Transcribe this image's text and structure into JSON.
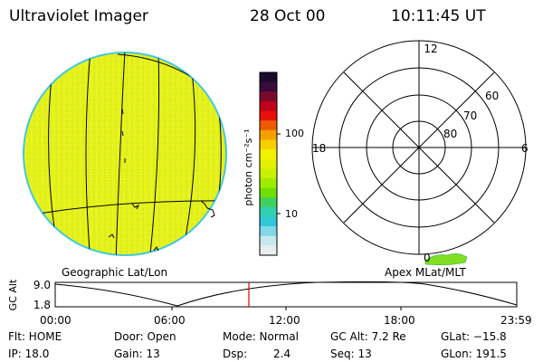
{
  "header": {
    "instrument": "Ultraviolet Imager",
    "date": "28 Oct 00",
    "time": "10:11:45 UT"
  },
  "colorbar": {
    "unit_label": "photon cm⁻²s⁻¹",
    "ticks": [
      "100",
      "10"
    ],
    "colors_top_to_bottom": [
      "#1a0b2e",
      "#3a0a3a",
      "#7a0a2a",
      "#c0001a",
      "#e8100a",
      "#f05a00",
      "#f5a000",
      "#f8d000",
      "#f4f000",
      "#e4f000",
      "#c8f000",
      "#a0ec00",
      "#70e000",
      "#40d060",
      "#30d0b0",
      "#30c8d8",
      "#80d8e8",
      "#c8e8f0",
      "#e8eef0"
    ]
  },
  "geo_panel": {
    "label": "Geographic Lat/Lon",
    "fill_color": "#e6f21a",
    "rim_color": "#44c8e0"
  },
  "polar_panel": {
    "label": "Apex  MLat/MLT",
    "mlt_labels": {
      "top": "12",
      "left": "18",
      "right": "6",
      "bottom": "0"
    },
    "mlat_labels": [
      "60",
      "70",
      "80"
    ]
  },
  "gc_plot": {
    "ylabel": "GC Alt",
    "ytick_top": "9.0",
    "ytick_bottom": "1.8",
    "xticks": [
      "00:00",
      "06:00",
      "12:00",
      "18:00",
      "23:59"
    ],
    "marker_color": "#e00000"
  },
  "info": {
    "row1": {
      "flt": "Flt: HOME",
      "door": "Door: Open",
      "mode": "Mode: Normal",
      "gcalt": "GC Alt: 7.2 Re",
      "glat": "GLat: −15.8"
    },
    "row2": {
      "ip": "IP: 18.0",
      "gain": "Gain: 13",
      "dsp_label": "Dsp:",
      "dsp_value": "2.4",
      "seq": "Seq: 13",
      "glon": "GLon: 191.5"
    }
  }
}
